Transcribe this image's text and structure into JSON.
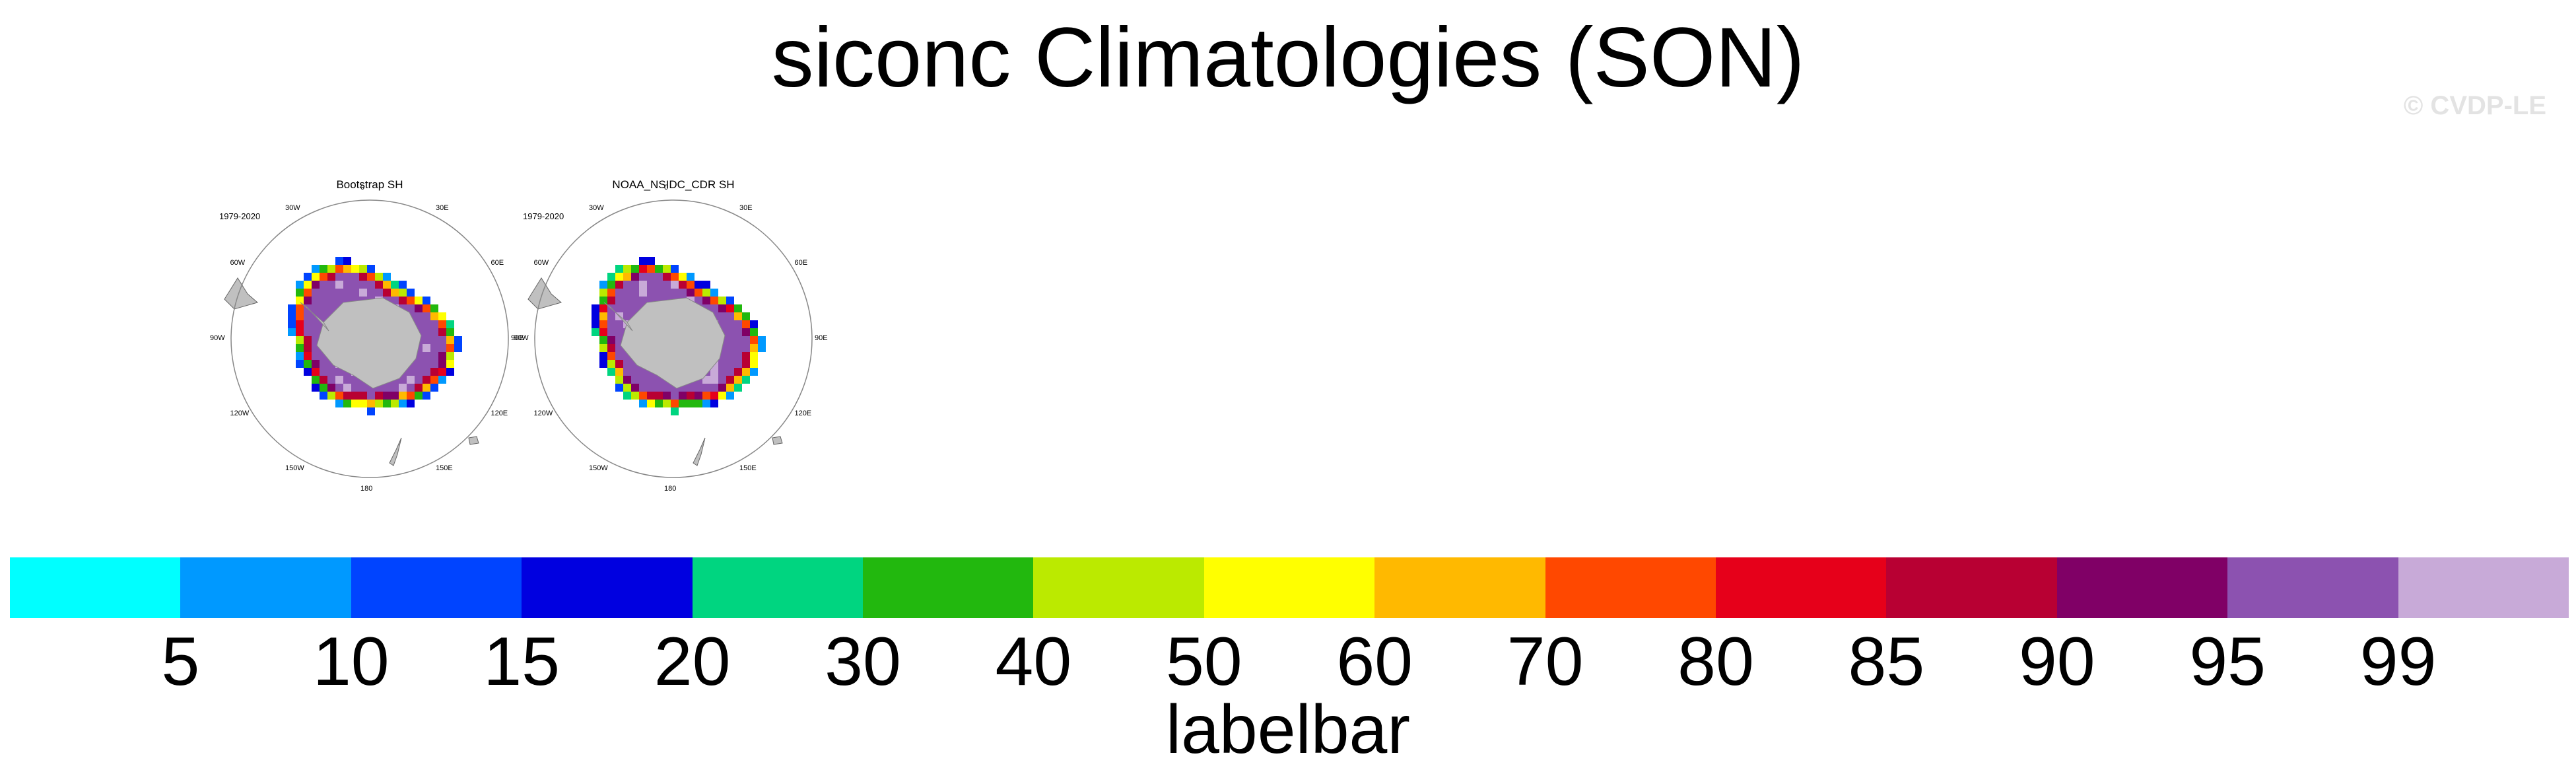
{
  "title": "siconc Climatologies (SON)",
  "watermark": "© CVDP-LE",
  "panels": [
    {
      "title": "Bootstrap SH",
      "period": "1979-2020",
      "dataset": "Bootstrap"
    },
    {
      "title": "NOAA_NSIDC_CDR SH",
      "period": "1979-2020",
      "dataset": "NOAA_NSIDC_CDR"
    }
  ],
  "longitude_labels": [
    "0",
    "30E",
    "60E",
    "90E",
    "120E",
    "150E",
    "180",
    "150W",
    "120W",
    "90W",
    "60W",
    "30W"
  ],
  "chart_data": {
    "type": "heatmap",
    "variable": "siconc",
    "season": "SON",
    "hemisphere": "SH",
    "projection": "polar stereographic",
    "levels": [
      5,
      10,
      15,
      20,
      30,
      40,
      50,
      60,
      70,
      80,
      85,
      90,
      95,
      99
    ],
    "colors": [
      "#00ffff",
      "#0099ff",
      "#0044ff",
      "#0000e0",
      "#00d580",
      "#22b80e",
      "#bbea00",
      "#ffff00",
      "#ffb900",
      "#ff4800",
      "#e6001a",
      "#b80033",
      "#800066",
      "#8c52b0",
      "#c8aad8"
    ],
    "colorbar_label": "labelbar"
  }
}
